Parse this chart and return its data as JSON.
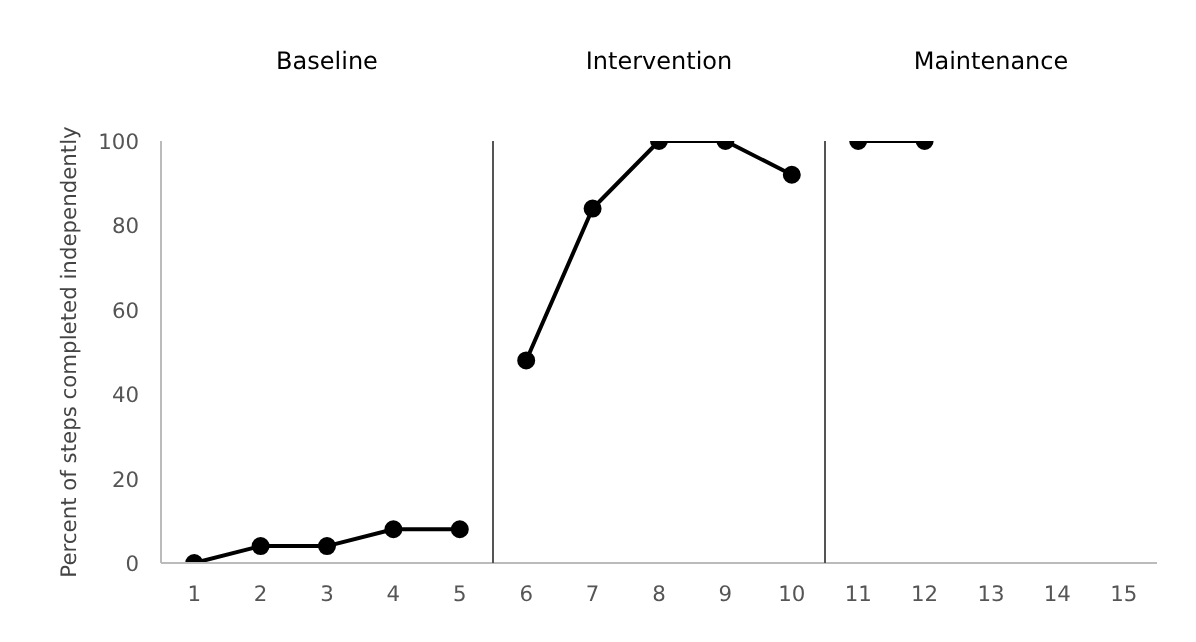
{
  "chart_data": {
    "type": "line",
    "ylabel": "Percent of steps completed independently",
    "xlim": [
      0.5,
      15.5
    ],
    "xticks": [
      1,
      2,
      3,
      4,
      5,
      6,
      7,
      8,
      9,
      10,
      11,
      12,
      13,
      14,
      15
    ],
    "ylim": [
      0,
      100
    ],
    "yticks": [
      0,
      20,
      40,
      60,
      80,
      100
    ],
    "grid": false,
    "marker": "circle",
    "line_style": "solid",
    "series": [
      {
        "color": "#000000",
        "x": [
          1,
          2,
          3,
          4,
          5
        ],
        "values": [
          0,
          4,
          4,
          8,
          8
        ]
      },
      {
        "color": "#000000",
        "x": [
          6,
          7,
          8,
          9,
          10
        ],
        "values": [
          48,
          84,
          100,
          100,
          92
        ]
      },
      {
        "color": "#000000",
        "x": [
          11,
          12
        ],
        "values": [
          100,
          100
        ]
      }
    ],
    "ref_lines": [
      {
        "axis": "x",
        "value": 5.5,
        "label": null,
        "color": "#555555"
      },
      {
        "axis": "x",
        "value": 10.5,
        "label": null,
        "color": "#555555"
      }
    ],
    "annotations": [
      "Baseline",
      "Intervention",
      "Maintenance"
    ]
  }
}
